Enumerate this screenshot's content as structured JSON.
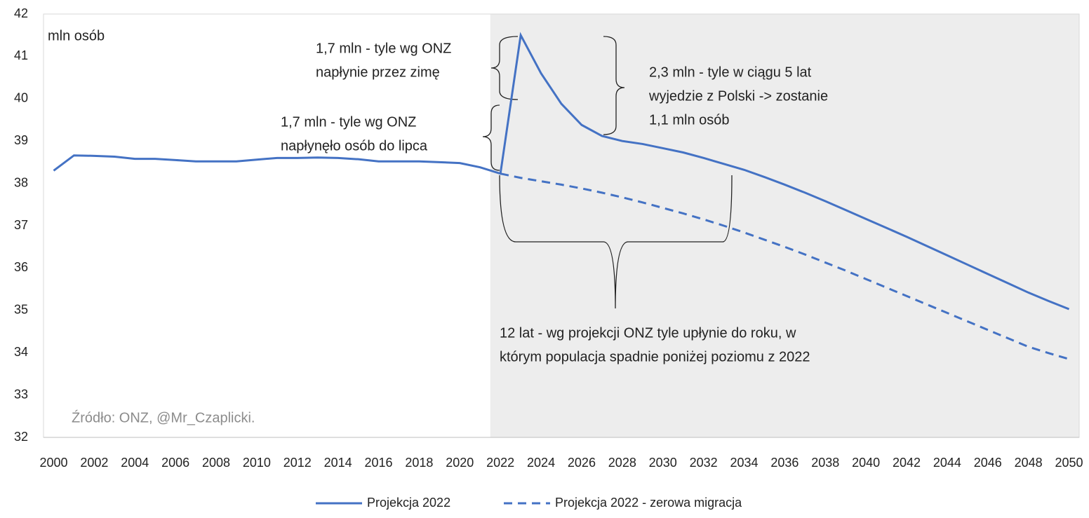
{
  "chart_data": {
    "type": "line",
    "unit_label": "mln osób",
    "source": "Źródło: ONZ, @Mr_Czaplicki.",
    "x": [
      2000,
      2001,
      2002,
      2003,
      2004,
      2005,
      2006,
      2007,
      2008,
      2009,
      2010,
      2011,
      2012,
      2013,
      2014,
      2015,
      2016,
      2017,
      2018,
      2019,
      2020,
      2021,
      2022,
      2023,
      2024,
      2025,
      2026,
      2027,
      2028,
      2029,
      2030,
      2031,
      2032,
      2033,
      2034,
      2035,
      2036,
      2037,
      2038,
      2039,
      2040,
      2041,
      2042,
      2043,
      2044,
      2045,
      2046,
      2047,
      2048,
      2049,
      2050
    ],
    "series": [
      {
        "name": "Projekcja 2022",
        "color": "#4472c4",
        "dash": false,
        "values": [
          38.3,
          38.66,
          38.65,
          38.63,
          38.58,
          38.58,
          38.55,
          38.52,
          38.52,
          38.52,
          38.56,
          38.6,
          38.6,
          38.61,
          38.6,
          38.57,
          38.52,
          38.52,
          38.52,
          38.5,
          38.48,
          38.38,
          38.23,
          41.5,
          40.6,
          39.88,
          39.38,
          39.12,
          39.0,
          38.93,
          38.83,
          38.73,
          38.6,
          38.46,
          38.32,
          38.15,
          37.97,
          37.78,
          37.58,
          37.37,
          37.16,
          36.95,
          36.74,
          36.52,
          36.3,
          36.08,
          35.86,
          35.64,
          35.42,
          35.22,
          35.03
        ]
      },
      {
        "name": "Projekcja 2022 - zerowa migracja",
        "color": "#4472c4",
        "dash": true,
        "values": [
          null,
          null,
          null,
          null,
          null,
          null,
          null,
          null,
          null,
          null,
          null,
          null,
          null,
          null,
          null,
          null,
          null,
          null,
          null,
          null,
          null,
          null,
          38.23,
          38.13,
          38.05,
          37.97,
          37.88,
          37.78,
          37.67,
          37.55,
          37.42,
          37.29,
          37.15,
          37.0,
          36.84,
          36.67,
          36.5,
          36.32,
          36.13,
          35.94,
          35.74,
          35.54,
          35.34,
          35.14,
          34.94,
          34.74,
          34.54,
          34.34,
          34.14,
          33.99,
          33.85
        ]
      }
    ],
    "projection_start": 2021.5,
    "xlim": [
      1999.5,
      2050.5
    ],
    "xticks": [
      2000,
      2002,
      2004,
      2006,
      2008,
      2010,
      2012,
      2014,
      2016,
      2018,
      2020,
      2022,
      2024,
      2026,
      2028,
      2030,
      2032,
      2034,
      2036,
      2038,
      2040,
      2042,
      2044,
      2046,
      2048,
      2050
    ],
    "ylim": [
      32,
      42
    ],
    "yticks": [
      32,
      33,
      34,
      35,
      36,
      37,
      38,
      39,
      40,
      41,
      42
    ],
    "annotations": [
      [
        "1,7 mln - tyle wg ONZ",
        "napłynie przez zimę"
      ],
      [
        "1,7 mln - tyle wg ONZ",
        "napłynęło osób do lipca"
      ],
      [
        "2,3 mln - tyle w ciągu 5 lat",
        "wyjedzie z Polski -> zostanie",
        "1,1 mln osób"
      ],
      [
        "12 lat - wg projekcji ONZ tyle upłynie do roku, w",
        "którym populacja spadnie poniżej poziomu z 2022"
      ]
    ],
    "legend": "bottom"
  }
}
